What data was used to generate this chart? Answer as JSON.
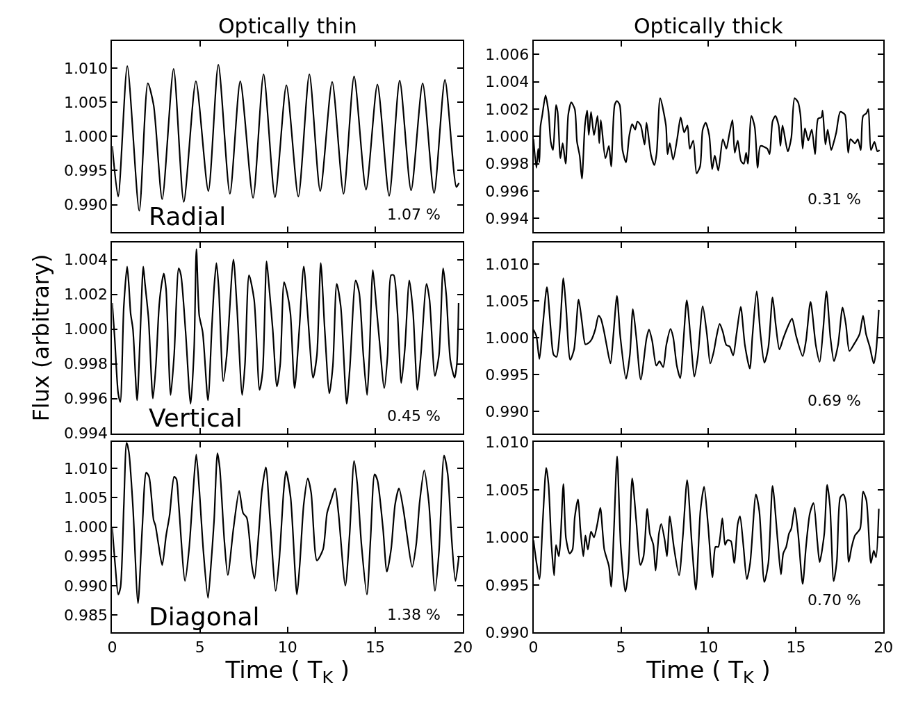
{
  "chart_data": [
    {
      "type": "line",
      "title": "Optically thin",
      "color": "#000000",
      "line_style": "solid",
      "tick_labels": "y",
      "annotations": [
        "Radial",
        "1.07 %"
      ],
      "xlim": [
        0,
        20
      ],
      "xticks": [
        0,
        5,
        10,
        15,
        20
      ],
      "ylim": [
        0.986,
        1.014
      ],
      "yticks": [
        {
          "value": 0.99,
          "label": "0.990"
        },
        {
          "value": 0.995,
          "label": "0.995"
        },
        {
          "value": 1.0,
          "label": "1.000"
        },
        {
          "value": 1.005,
          "label": "1.005"
        },
        {
          "value": 1.01,
          "label": "1.010"
        }
      ],
      "x": [
        0,
        0.34,
        0.86,
        1.54,
        2.03,
        2.36,
        2.85,
        3.5,
        4.08,
        4.77,
        5.48,
        6.05,
        6.71,
        7.3,
        8.03,
        8.63,
        9.28,
        9.93,
        10.61,
        11.24,
        11.86,
        12.54,
        13.19,
        13.79,
        14.47,
        15.12,
        15.79,
        16.39,
        17.04,
        17.7,
        18.35,
        18.97,
        19.62,
        19.77
      ],
      "values": [
        0.9986,
        0.9912,
        1.0103,
        0.9891,
        1.0078,
        1.0046,
        0.9908,
        1.0099,
        0.9904,
        1.0081,
        0.992,
        1.0105,
        0.9916,
        1.0081,
        0.991,
        1.0091,
        0.9911,
        1.0075,
        0.9912,
        1.0091,
        0.992,
        1.008,
        0.9916,
        1.0088,
        0.9922,
        1.0076,
        0.9913,
        1.0082,
        0.9921,
        1.0078,
        0.9917,
        1.0083,
        0.9926,
        0.9932
      ]
    },
    {
      "type": "line",
      "title": "Optically thick",
      "color": "#000000",
      "line_style": "solid",
      "tick_labels": "y",
      "annotations": [
        "0.31 %"
      ],
      "xlim": [
        0,
        20
      ],
      "xticks": [
        0,
        5,
        10,
        15,
        20
      ],
      "ylim": [
        0.993,
        1.007
      ],
      "yticks": [
        {
          "value": 0.994,
          "label": "0.994"
        },
        {
          "value": 0.996,
          "label": "0.996"
        },
        {
          "value": 0.998,
          "label": "0.998"
        },
        {
          "value": 1.0,
          "label": "1.000"
        },
        {
          "value": 1.002,
          "label": "1.002"
        },
        {
          "value": 1.004,
          "label": "1.004"
        },
        {
          "value": 1.006,
          "label": "1.006"
        }
      ],
      "x": [
        0,
        0.17,
        0.27,
        0.34,
        0.4,
        0.51,
        0.69,
        0.86,
        0.99,
        1.12,
        1.29,
        1.38,
        1.54,
        1.67,
        1.84,
        1.99,
        2.16,
        2.36,
        2.49,
        2.64,
        2.77,
        2.94,
        3.07,
        3.16,
        3.29,
        3.46,
        3.66,
        3.76,
        3.85,
        4.11,
        4.31,
        4.44,
        4.64,
        4.77,
        4.93,
        5.09,
        5.29,
        5.48,
        5.64,
        5.81,
        5.94,
        6.13,
        6.35,
        6.46,
        6.72,
        6.91,
        7.04,
        7.24,
        7.57,
        7.66,
        7.79,
        7.98,
        8.22,
        8.41,
        8.61,
        8.8,
        8.93,
        9.13,
        9.32,
        9.52,
        9.67,
        9.84,
        10.04,
        10.21,
        10.36,
        10.56,
        10.82,
        11.02,
        11.18,
        11.37,
        11.5,
        11.67,
        11.86,
        12.02,
        12.15,
        12.25,
        12.45,
        12.64,
        12.81,
        12.97,
        13.36,
        13.49,
        13.66,
        13.82,
        14.01,
        14.11,
        14.23,
        14.53,
        14.73,
        14.92,
        15.12,
        15.25,
        15.38,
        15.51,
        15.7,
        15.9,
        16.09,
        16.26,
        16.45,
        16.52,
        16.68,
        16.81,
        17.01,
        17.14,
        17.3,
        17.53,
        17.79,
        17.85,
        17.98,
        18.11,
        18.37,
        18.53,
        18.7,
        18.83,
        19.02,
        19.13,
        19.28,
        19.48,
        19.65,
        19.77
      ],
      "values": [
        0.9998,
        0.9977,
        0.9991,
        0.9981,
        1.0007,
        1.0016,
        1.003,
        1.0018,
        0.9996,
        0.999,
        1.0023,
        1.0018,
        0.9984,
        0.9995,
        0.998,
        1.0016,
        1.0025,
        1.002,
        0.9996,
        0.9986,
        0.9969,
        1.0008,
        1.0019,
        1.0001,
        1.0018,
        1.0001,
        1.0015,
        0.9995,
        1.0012,
        0.9984,
        0.9993,
        0.9978,
        1.0023,
        1.0026,
        1.0023,
        0.999,
        0.9981,
        1.0001,
        1.0009,
        1.0005,
        1.0011,
        1.0008,
        0.9994,
        1.001,
        0.9986,
        0.9979,
        0.9988,
        1.0028,
        1.0008,
        0.9987,
        0.9995,
        0.9983,
        0.9999,
        1.0014,
        1.0003,
        1.0008,
        0.9991,
        0.9997,
        0.9973,
        0.9978,
        1.0005,
        1.001,
        1.0001,
        0.9976,
        0.9986,
        0.9975,
        0.9998,
        0.9991,
        1.0001,
        1.0012,
        0.9988,
        0.9997,
        0.9982,
        0.998,
        0.9988,
        0.998,
        1.0015,
        1.0007,
        0.9977,
        0.9993,
        0.9991,
        0.9987,
        1.0011,
        1.0015,
        1.0008,
        0.9993,
        1.0008,
        0.9989,
        0.9999,
        1.0028,
        1.0025,
        1.0016,
        0.9991,
        1.0006,
        0.9997,
        1.0005,
        0.9987,
        1.0013,
        1.0014,
        1.0019,
        0.9994,
        1.0005,
        0.999,
        0.9995,
        1.0003,
        1.0018,
        1.0016,
        1.0012,
        0.9988,
        0.9998,
        0.9995,
        0.9998,
        0.999,
        1.0015,
        1.0017,
        1.002,
        0.999,
        0.9996,
        0.9989,
        0.999
      ]
    },
    {
      "type": "line",
      "ylabel": "Flux (arbitrary)",
      "color": "#000000",
      "line_style": "solid",
      "tick_labels": "y",
      "annotations": [
        "Vertical",
        "0.45 %"
      ],
      "xlim": [
        0,
        20
      ],
      "xticks": [
        0,
        5,
        10,
        15,
        20
      ],
      "ylim": [
        0.994,
        1.005
      ],
      "yticks": [
        {
          "value": 0.994,
          "label": "0.994"
        },
        {
          "value": 0.996,
          "label": "0.996"
        },
        {
          "value": 0.998,
          "label": "0.998"
        },
        {
          "value": 1.0,
          "label": "1.000"
        },
        {
          "value": 1.002,
          "label": "1.002"
        },
        {
          "value": 1.004,
          "label": "1.004"
        }
      ],
      "x": [
        0,
        0.14,
        0.34,
        0.46,
        0.66,
        0.85,
        0.95,
        1.05,
        1.18,
        1.42,
        1.58,
        1.77,
        1.86,
        2.07,
        2.32,
        2.49,
        2.68,
        2.85,
        2.94,
        3.07,
        3.33,
        3.53,
        3.79,
        3.92,
        4.18,
        4.47,
        4.67,
        4.8,
        4.96,
        5.16,
        5.46,
        5.68,
        5.81,
        5.94,
        6.07,
        6.33,
        6.52,
        6.91,
        7.11,
        7.41,
        7.57,
        7.8,
        8.09,
        8.4,
        8.58,
        8.8,
        8.93,
        9.15,
        9.39,
        9.58,
        9.8,
        9.97,
        10.16,
        10.4,
        10.66,
        10.92,
        11.15,
        11.45,
        11.67,
        11.89,
        12.12,
        12.38,
        12.58,
        12.8,
        13.03,
        13.37,
        13.55,
        13.88,
        14.08,
        14.31,
        14.53,
        14.66,
        14.86,
        15.05,
        15.22,
        15.51,
        15.7,
        15.9,
        16.05,
        16.26,
        16.48,
        16.68,
        16.94,
        17.15,
        17.4,
        17.59,
        17.92,
        18.09,
        18.4,
        18.63,
        18.87,
        19.05,
        19.28,
        19.52,
        19.65,
        19.75
      ],
      "values": [
        1.0015,
        0.9995,
        0.9963,
        0.9958,
        1.0013,
        1.0036,
        1.0025,
        1.0009,
        1.0,
        0.9959,
        0.9993,
        1.0036,
        1.0027,
        1.0006,
        0.996,
        0.9979,
        1.0014,
        1.0028,
        1.0032,
        1.0023,
        0.9962,
        0.9985,
        1.0035,
        1.0031,
        0.9999,
        0.9957,
        0.9989,
        1.0046,
        1.0008,
        0.9998,
        0.9959,
        1.0001,
        1.0024,
        1.0038,
        1.0024,
        0.997,
        0.9984,
        1.004,
        1.0013,
        0.9962,
        0.998,
        1.0031,
        1.0017,
        0.9965,
        0.9976,
        1.0039,
        1.0026,
        1.0,
        0.9967,
        0.998,
        1.0027,
        1.0021,
        1.0009,
        0.9966,
        0.9999,
        1.0036,
        1.0008,
        0.9972,
        0.9985,
        1.0038,
        0.9999,
        0.9963,
        0.9979,
        1.0026,
        1.0013,
        0.9957,
        0.9978,
        1.0028,
        1.0021,
        0.9986,
        0.9962,
        0.9984,
        1.0034,
        1.0014,
        0.9995,
        0.9966,
        0.9985,
        1.0031,
        1.0031,
        1.001,
        0.9969,
        0.9988,
        1.0028,
        1.001,
        0.9965,
        0.9984,
        1.0026,
        1.0017,
        0.9973,
        0.9985,
        1.0035,
        1.0019,
        0.9982,
        0.9972,
        0.998,
        1.0015
      ]
    },
    {
      "type": "line",
      "color": "#000000",
      "line_style": "solid",
      "tick_labels": "y",
      "annotations": [
        "0.69 %"
      ],
      "xlim": [
        0,
        20
      ],
      "xticks": [
        0,
        5,
        10,
        15,
        20
      ],
      "ylim": [
        0.987,
        1.013
      ],
      "yticks": [
        {
          "value": 0.99,
          "label": "0.990"
        },
        {
          "value": 0.995,
          "label": "0.995"
        },
        {
          "value": 1.0,
          "label": "1.000"
        },
        {
          "value": 1.005,
          "label": "1.005"
        },
        {
          "value": 1.01,
          "label": "1.010"
        }
      ],
      "x": [
        0,
        0.17,
        0.34,
        0.53,
        0.77,
        0.99,
        1.15,
        1.32,
        1.51,
        1.71,
        1.86,
        2.1,
        2.32,
        2.58,
        2.77,
        2.97,
        3.16,
        3.33,
        3.53,
        3.72,
        3.85,
        4.02,
        4.18,
        4.4,
        4.57,
        4.77,
        4.96,
        5.29,
        5.51,
        5.68,
        5.87,
        6.13,
        6.46,
        6.6,
        6.78,
        7.02,
        7.2,
        7.41,
        7.59,
        7.83,
        7.98,
        8.19,
        8.39,
        8.57,
        8.76,
        9.0,
        9.19,
        9.39,
        9.67,
        9.91,
        10.1,
        10.3,
        10.46,
        10.64,
        10.82,
        11.02,
        11.21,
        11.41,
        11.6,
        11.84,
        12.08,
        12.36,
        12.51,
        12.75,
        12.97,
        13.19,
        13.42,
        13.66,
        13.84,
        14.05,
        14.27,
        14.53,
        14.77,
        15.01,
        15.38,
        15.57,
        15.83,
        16.13,
        16.35,
        16.55,
        16.74,
        16.97,
        17.17,
        17.4,
        17.66,
        17.85,
        18.05,
        18.31,
        18.63,
        18.83,
        19.0,
        19.22,
        19.44,
        19.57,
        19.73
      ],
      "values": [
        1.0011,
        1.0002,
        0.9971,
        1.0015,
        1.0069,
        1.0011,
        0.9977,
        0.9974,
        1.0011,
        1.0081,
        1.0042,
        0.997,
        0.9984,
        1.0052,
        1.0022,
        0.9991,
        0.9993,
        0.9998,
        1.0011,
        1.003,
        1.0026,
        1.001,
        0.999,
        0.9965,
        1.0005,
        1.0057,
        1.0002,
        0.9944,
        0.9977,
        1.0039,
        1.0002,
        0.9943,
        0.9999,
        1.0011,
        0.9996,
        0.9962,
        0.9968,
        0.996,
        0.999,
        1.0012,
        1.0001,
        0.9962,
        0.9945,
        0.9996,
        1.0051,
        0.9993,
        0.9947,
        0.9974,
        1.0043,
        1.0005,
        0.9965,
        0.9981,
        1.0002,
        1.0019,
        1.0008,
        0.999,
        0.9988,
        0.9976,
        1.0005,
        1.0042,
        0.999,
        0.9958,
        1.0002,
        1.0063,
        1.0005,
        0.9966,
        0.9987,
        1.0055,
        1.0018,
        0.9984,
        0.9999,
        1.0015,
        1.0026,
        1.0002,
        0.9975,
        0.9996,
        1.0049,
        0.999,
        0.9967,
        1.0011,
        1.0063,
        0.9999,
        0.9968,
        0.999,
        1.0041,
        1.0018,
        0.9982,
        0.9991,
        1.0005,
        1.003,
        1.0005,
        0.9987,
        0.9965,
        0.9981,
        1.0038
      ]
    },
    {
      "type": "line",
      "xlabel": "Time ( T$_{K}$ )",
      "color": "#000000",
      "line_style": "solid",
      "annotations": [
        "Diagonal",
        "1.38 %"
      ],
      "xlim": [
        0,
        20
      ],
      "xticks": [
        0,
        5,
        10,
        15,
        20
      ],
      "ylim": [
        0.982,
        1.0145
      ],
      "yticks": [
        {
          "value": 0.985,
          "label": "0.985"
        },
        {
          "value": 0.99,
          "label": "0.990"
        },
        {
          "value": 0.995,
          "label": "0.995"
        },
        {
          "value": 1.0,
          "label": "1.000"
        },
        {
          "value": 1.005,
          "label": "1.005"
        },
        {
          "value": 1.01,
          "label": "1.010"
        }
      ],
      "x": [
        0,
        0.17,
        0.34,
        0.47,
        0.66,
        0.82,
        0.95,
        1.18,
        1.47,
        1.71,
        1.94,
        2.1,
        2.36,
        2.46,
        2.64,
        2.85,
        3.07,
        3.27,
        3.53,
        3.66,
        3.79,
        4.15,
        4.38,
        4.6,
        4.79,
        4.96,
        5.2,
        5.46,
        5.61,
        5.81,
        6.0,
        6.13,
        6.39,
        6.59,
        6.91,
        7.24,
        7.46,
        7.67,
        7.96,
        8.11,
        8.35,
        8.54,
        8.76,
        9.0,
        9.32,
        9.52,
        9.78,
        9.91,
        10.17,
        10.53,
        10.69,
        10.92,
        11.15,
        11.34,
        11.67,
        12.02,
        12.25,
        12.49,
        12.71,
        12.9,
        13.29,
        13.53,
        13.79,
        13.97,
        14.21,
        14.52,
        14.73,
        14.96,
        15.12,
        15.44,
        15.66,
        15.9,
        16.13,
        16.35,
        16.61,
        16.81,
        17.1,
        17.33,
        17.53,
        17.79,
        18.05,
        18.4,
        18.63,
        18.92,
        19.13,
        19.35,
        19.57,
        19.77
      ],
      "values": [
        0.9999,
        0.9935,
        0.9885,
        0.9897,
        1.0035,
        1.0144,
        1.0128,
        1.0035,
        0.987,
        0.9997,
        1.0093,
        1.0086,
        1.0012,
        1.0003,
        0.997,
        0.9935,
        0.9985,
        1.002,
        1.0086,
        1.0082,
        1.0039,
        0.9908,
        0.9962,
        1.0055,
        1.0124,
        1.0066,
        0.9958,
        0.9879,
        0.9927,
        1.0012,
        1.0126,
        1.0101,
        0.9978,
        0.9918,
        0.9997,
        1.0062,
        1.0024,
        1.0016,
        0.9935,
        0.9912,
        0.9989,
        1.0063,
        1.0102,
        1.0012,
        0.9891,
        0.9943,
        1.0063,
        1.0095,
        1.0051,
        0.9885,
        0.9935,
        1.0039,
        1.0083,
        1.0059,
        0.9943,
        0.9962,
        1.0024,
        1.0047,
        1.0066,
        1.0024,
        0.99,
        0.9985,
        1.0113,
        1.0074,
        0.997,
        0.9885,
        0.9981,
        1.009,
        1.008,
        0.9997,
        0.9924,
        0.9962,
        1.0039,
        1.0066,
        1.0028,
        0.9985,
        0.9932,
        0.997,
        1.0043,
        1.0097,
        1.0043,
        0.9891,
        0.9958,
        1.0122,
        1.009,
        0.9981,
        0.9908,
        0.9951
      ]
    },
    {
      "type": "line",
      "xlabel": "Time ( T$_{K}$ )",
      "color": "#000000",
      "line_style": "solid",
      "annotations": [
        "0.70 %"
      ],
      "xlim": [
        0,
        20
      ],
      "xticks": [
        0,
        5,
        10,
        15,
        20
      ],
      "ylim": [
        0.99,
        1.01
      ],
      "yticks": [
        {
          "value": 0.99,
          "label": "0.990"
        },
        {
          "value": 0.995,
          "label": "0.995"
        },
        {
          "value": 1.0,
          "label": "1.000"
        },
        {
          "value": 1.005,
          "label": "1.005"
        },
        {
          "value": 1.01,
          "label": "1.010"
        }
      ],
      "x": [
        0,
        0.17,
        0.34,
        0.53,
        0.73,
        0.86,
        1.03,
        1.18,
        1.29,
        1.45,
        1.55,
        1.71,
        1.86,
        2.07,
        2.23,
        2.36,
        2.55,
        2.68,
        2.85,
        2.97,
        3.11,
        3.29,
        3.46,
        3.66,
        3.82,
        4.05,
        4.31,
        4.44,
        4.6,
        4.78,
        4.99,
        5.25,
        5.42,
        5.64,
        5.87,
        6.11,
        6.29,
        6.5,
        6.65,
        6.85,
        6.98,
        7.17,
        7.3,
        7.5,
        7.63,
        7.79,
        8.02,
        8.32,
        8.54,
        8.78,
        9.06,
        9.28,
        9.54,
        9.75,
        9.97,
        10.23,
        10.4,
        10.56,
        10.79,
        10.95,
        11.08,
        11.28,
        11.47,
        11.67,
        11.8,
        11.99,
        12.19,
        12.38,
        12.71,
        12.9,
        13.19,
        13.42,
        13.66,
        13.95,
        14.14,
        14.27,
        14.44,
        14.6,
        14.73,
        14.93,
        15.12,
        15.38,
        15.57,
        15.79,
        16.0,
        16.22,
        16.35,
        16.61,
        16.78,
        16.94,
        17.15,
        17.33,
        17.53,
        17.7,
        17.85,
        18.01,
        18.18,
        18.37,
        18.66,
        18.83,
        19.02,
        19.28,
        19.44,
        19.57,
        19.73
      ],
      "values": [
        0.9997,
        0.9974,
        0.9956,
        1.0016,
        1.0073,
        1.0056,
        0.9992,
        0.996,
        0.9992,
        0.998,
        0.9999,
        1.0056,
        0.9999,
        0.9983,
        0.9987,
        1.0021,
        1.004,
        1.0009,
        0.998,
        1.0002,
        0.9987,
        1.0006,
        1.0,
        1.0015,
        1.0031,
        0.9987,
        0.997,
        0.9948,
        1.0009,
        1.0085,
        0.999,
        0.9943,
        0.9964,
        1.0062,
        1.0018,
        0.9971,
        0.998,
        1.003,
        1.0004,
        0.9992,
        0.9965,
        1.0004,
        1.0014,
        0.9997,
        0.998,
        1.0022,
        0.999,
        0.996,
        1.0002,
        1.006,
        0.999,
        0.9945,
        1.0028,
        1.0053,
        1.0014,
        0.9958,
        0.999,
        0.999,
        1.002,
        0.9992,
        0.9997,
        0.9996,
        0.9973,
        1.0014,
        1.0022,
        0.9992,
        0.9956,
        0.9973,
        1.0045,
        1.0028,
        0.9953,
        0.9973,
        1.0054,
        0.9997,
        0.9961,
        0.9983,
        0.999,
        1.0004,
        1.0009,
        1.0031,
        1.0004,
        0.9951,
        0.999,
        1.0025,
        1.0036,
        0.9995,
        0.9974,
        1.0003,
        1.0055,
        1.0033,
        0.9954,
        0.9975,
        1.0042,
        1.0045,
        1.0037,
        0.9974,
        0.999,
        1.0002,
        1.0009,
        1.0048,
        1.0039,
        0.9973,
        0.9986,
        0.9979,
        1.003
      ]
    }
  ]
}
